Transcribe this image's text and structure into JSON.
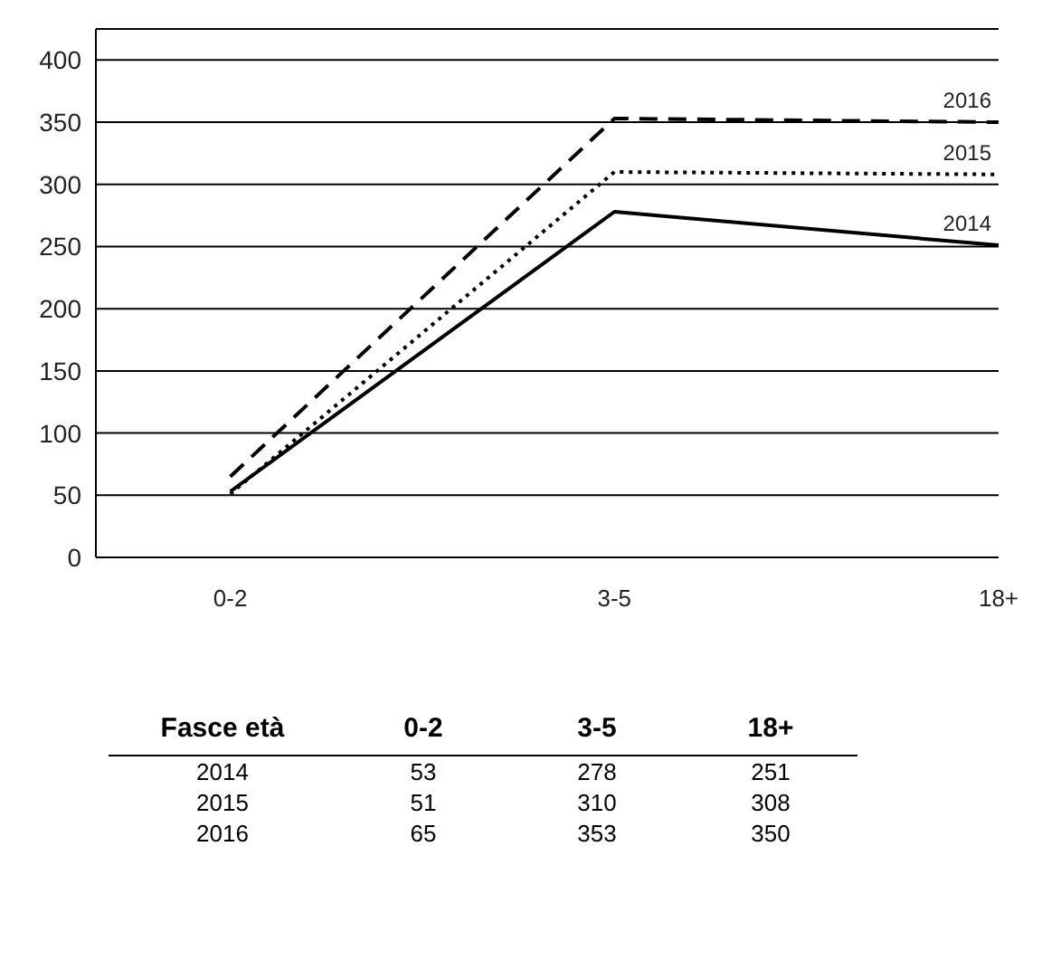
{
  "chart_data": [
    {
      "type": "line",
      "categories": [
        "0-2",
        "3-5",
        "18+"
      ],
      "series": [
        {
          "name": "2014",
          "color": "#000000",
          "line_style": "solid",
          "values": [
            53,
            278,
            251
          ]
        },
        {
          "name": "2015",
          "color": "#000000",
          "line_style": "dotted",
          "values": [
            51,
            310,
            308
          ]
        },
        {
          "name": "2016",
          "color": "#000000",
          "line_style": "dashed",
          "values": [
            65,
            353,
            350
          ]
        }
      ],
      "ylim": [
        0,
        425
      ],
      "yticks": [
        0,
        50,
        100,
        150,
        200,
        250,
        300,
        350,
        400
      ],
      "grid": "y",
      "marker": "none"
    },
    {
      "type": "heatmap",
      "xlabel": "Fasce età",
      "categories": [
        "0-2",
        "3-5",
        "18+"
      ],
      "y_categories": [
        "2014",
        "2015",
        "2016"
      ],
      "cells": [
        [
          53,
          278,
          251
        ],
        [
          51,
          310,
          308
        ],
        [
          65,
          353,
          350
        ]
      ],
      "data_labels": true
    }
  ]
}
